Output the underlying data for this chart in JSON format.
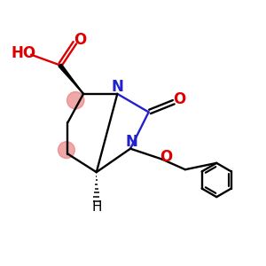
{
  "background": "#ffffff",
  "fig_size": [
    3.0,
    3.0
  ],
  "dpi": 100,
  "xlim": [
    0,
    10
  ],
  "ylim": [
    0,
    10
  ],
  "black": "#000000",
  "blue": "#2222cc",
  "red": "#dd0000",
  "pink": "#e87878",
  "lw": 1.7
}
